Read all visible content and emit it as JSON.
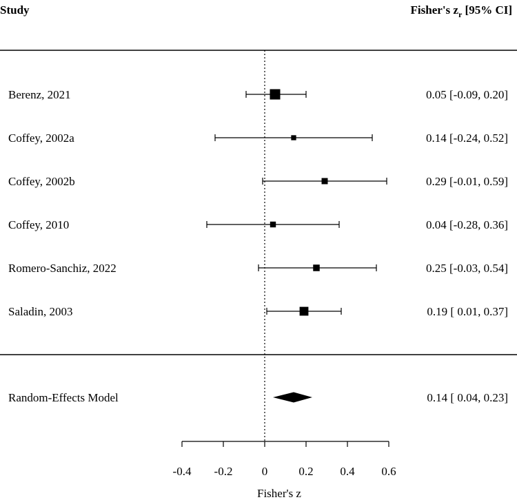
{
  "chart_data": {
    "type": "forest",
    "header": {
      "study": "Study",
      "effect_prefix": "Fisher's z",
      "effect_sub": "r",
      "effect_suffix": " [95% CI]"
    },
    "xlabel": "Fisher's z",
    "xlim": [
      -0.4,
      0.6
    ],
    "xticks": [
      -0.4,
      -0.2,
      0,
      0.2,
      0.4,
      0.6
    ],
    "xtick_labels": [
      "-0.4",
      "-0.2",
      "0",
      "0.2",
      "0.4",
      "0.6"
    ],
    "reference_line": 0,
    "studies": [
      {
        "name": "Berenz, 2021",
        "est": 0.05,
        "lo": -0.09,
        "hi": 0.2,
        "text": "0.05 [-0.09, 0.20]",
        "weight": 1.0
      },
      {
        "name": "Coffey, 2002a",
        "est": 0.14,
        "lo": -0.24,
        "hi": 0.52,
        "text": "0.14 [-0.24, 0.52]",
        "weight": 0.3
      },
      {
        "name": "Coffey, 2002b",
        "est": 0.29,
        "lo": -0.01,
        "hi": 0.59,
        "text": "0.29 [-0.01, 0.59]",
        "weight": 0.45
      },
      {
        "name": "Coffey, 2010",
        "est": 0.04,
        "lo": -0.28,
        "hi": 0.36,
        "text": "0.04 [-0.28, 0.36]",
        "weight": 0.4
      },
      {
        "name": "Romero-Sanchiz, 2022",
        "est": 0.25,
        "lo": -0.03,
        "hi": 0.54,
        "text": "0.25 [-0.03, 0.54]",
        "weight": 0.5
      },
      {
        "name": "Saladin, 2003",
        "est": 0.19,
        "lo": 0.01,
        "hi": 0.37,
        "text": "0.19 [ 0.01, 0.37]",
        "weight": 0.8
      }
    ],
    "summary": {
      "name": "Random-Effects Model",
      "est": 0.14,
      "lo": 0.04,
      "hi": 0.23,
      "text": "0.14 [ 0.04, 0.23]"
    }
  }
}
